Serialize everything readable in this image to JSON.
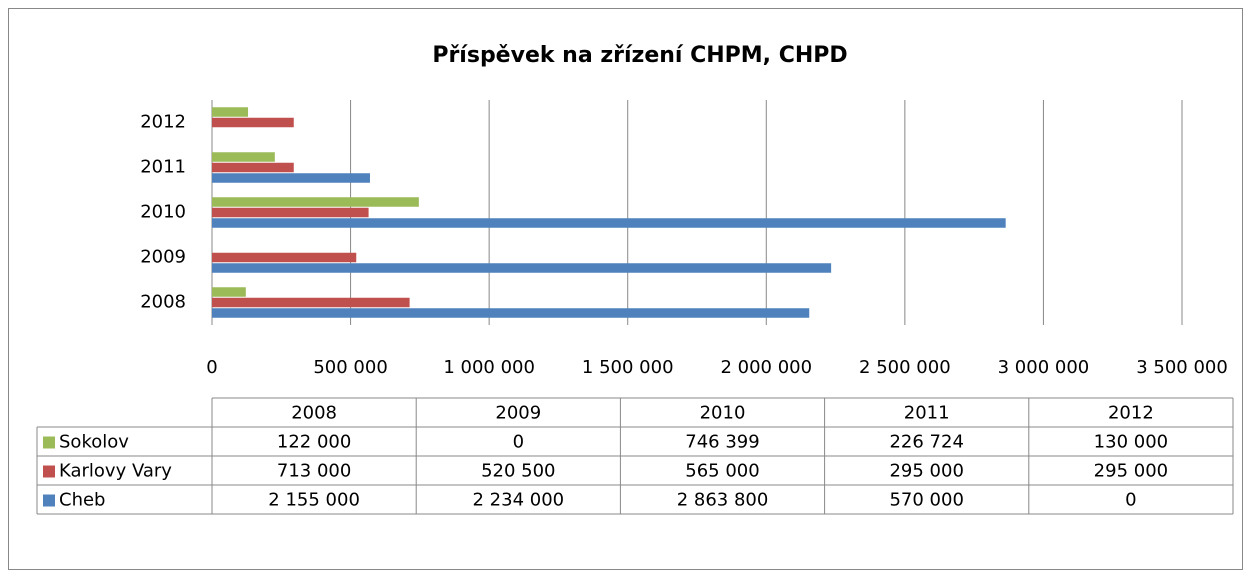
{
  "chart_data": {
    "type": "hbar",
    "title": "Příspěvek na zřízení CHPM, CHPD",
    "categories": [
      "2008",
      "2009",
      "2010",
      "2011",
      "2012"
    ],
    "series": [
      {
        "name": "Cheb",
        "color": "#4f81bd",
        "values": [
          2155000,
          2234000,
          2863800,
          570000,
          0
        ],
        "value_labels": [
          "2 155 000",
          "2 234 000",
          "2 863 800",
          "570 000",
          "0"
        ]
      },
      {
        "name": "Karlovy Vary",
        "color": "#c0504d",
        "values": [
          713000,
          520500,
          565000,
          295000,
          295000
        ],
        "value_labels": [
          "713 000",
          "520 500",
          "565 000",
          "295 000",
          "295 000"
        ]
      },
      {
        "name": "Sokolov",
        "color": "#9bbb59",
        "values": [
          122000,
          0,
          746399,
          226724,
          130000
        ],
        "value_labels": [
          "122 000",
          "0",
          "746 399",
          "226 724",
          "130 000"
        ]
      }
    ],
    "xlim": [
      0,
      3500000
    ],
    "xticks": [
      0,
      {
        "value": 500000,
        "label": "500 000"
      },
      {
        "value": 1000000,
        "label": "1 000 000"
      },
      {
        "value": 1500000,
        "label": "1 500 000"
      },
      {
        "value": 2000000,
        "label": "2 000 000"
      },
      {
        "value": 2500000,
        "label": "2 500 000"
      },
      {
        "value": 3000000,
        "label": "3 000 000"
      },
      {
        "value": 3500000,
        "label": "3 500 000"
      }
    ],
    "grid": true
  }
}
